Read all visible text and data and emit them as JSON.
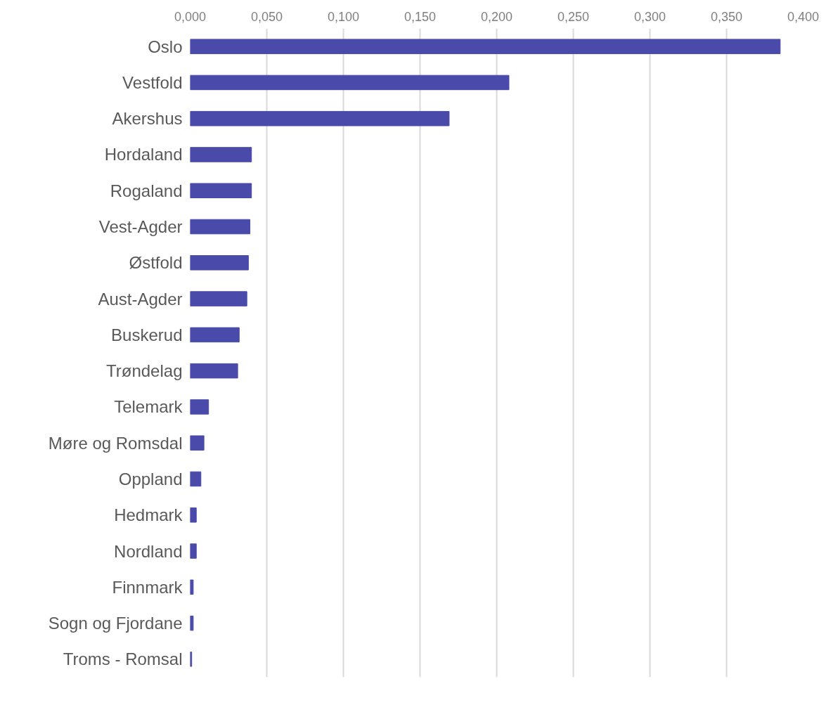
{
  "chart_data": {
    "type": "bar",
    "orientation": "horizontal",
    "categories": [
      "Oslo",
      "Vestfold",
      "Akershus",
      "Hordaland",
      "Rogaland",
      "Vest-Agder",
      "Østfold",
      "Aust-Agder",
      "Buskerud",
      "Trøndelag",
      "Telemark",
      "Møre og Romsdal",
      "Oppland",
      "Hedmark",
      "Nordland",
      "Finnmark",
      "Sogn og Fjordane",
      "Troms - Romsal"
    ],
    "values": [
      0.385,
      0.208,
      0.169,
      0.04,
      0.04,
      0.039,
      0.038,
      0.037,
      0.032,
      0.031,
      0.012,
      0.009,
      0.007,
      0.004,
      0.004,
      0.002,
      0.002,
      0.001
    ],
    "color": "#4a4aab",
    "xlim": [
      0,
      0.4
    ],
    "xticks": [
      {
        "value": 0,
        "label": "0,000"
      },
      {
        "value": 0.05,
        "label": "0,050"
      },
      {
        "value": 0.1,
        "label": "0,100"
      },
      {
        "value": 0.15,
        "label": "0,150"
      },
      {
        "value": 0.2,
        "label": "0,200"
      },
      {
        "value": 0.25,
        "label": "0,250"
      },
      {
        "value": 0.3,
        "label": "0,300"
      },
      {
        "value": 0.35,
        "label": "0,350"
      },
      {
        "value": 0.4,
        "label": "0,400"
      }
    ],
    "grid": "x"
  }
}
